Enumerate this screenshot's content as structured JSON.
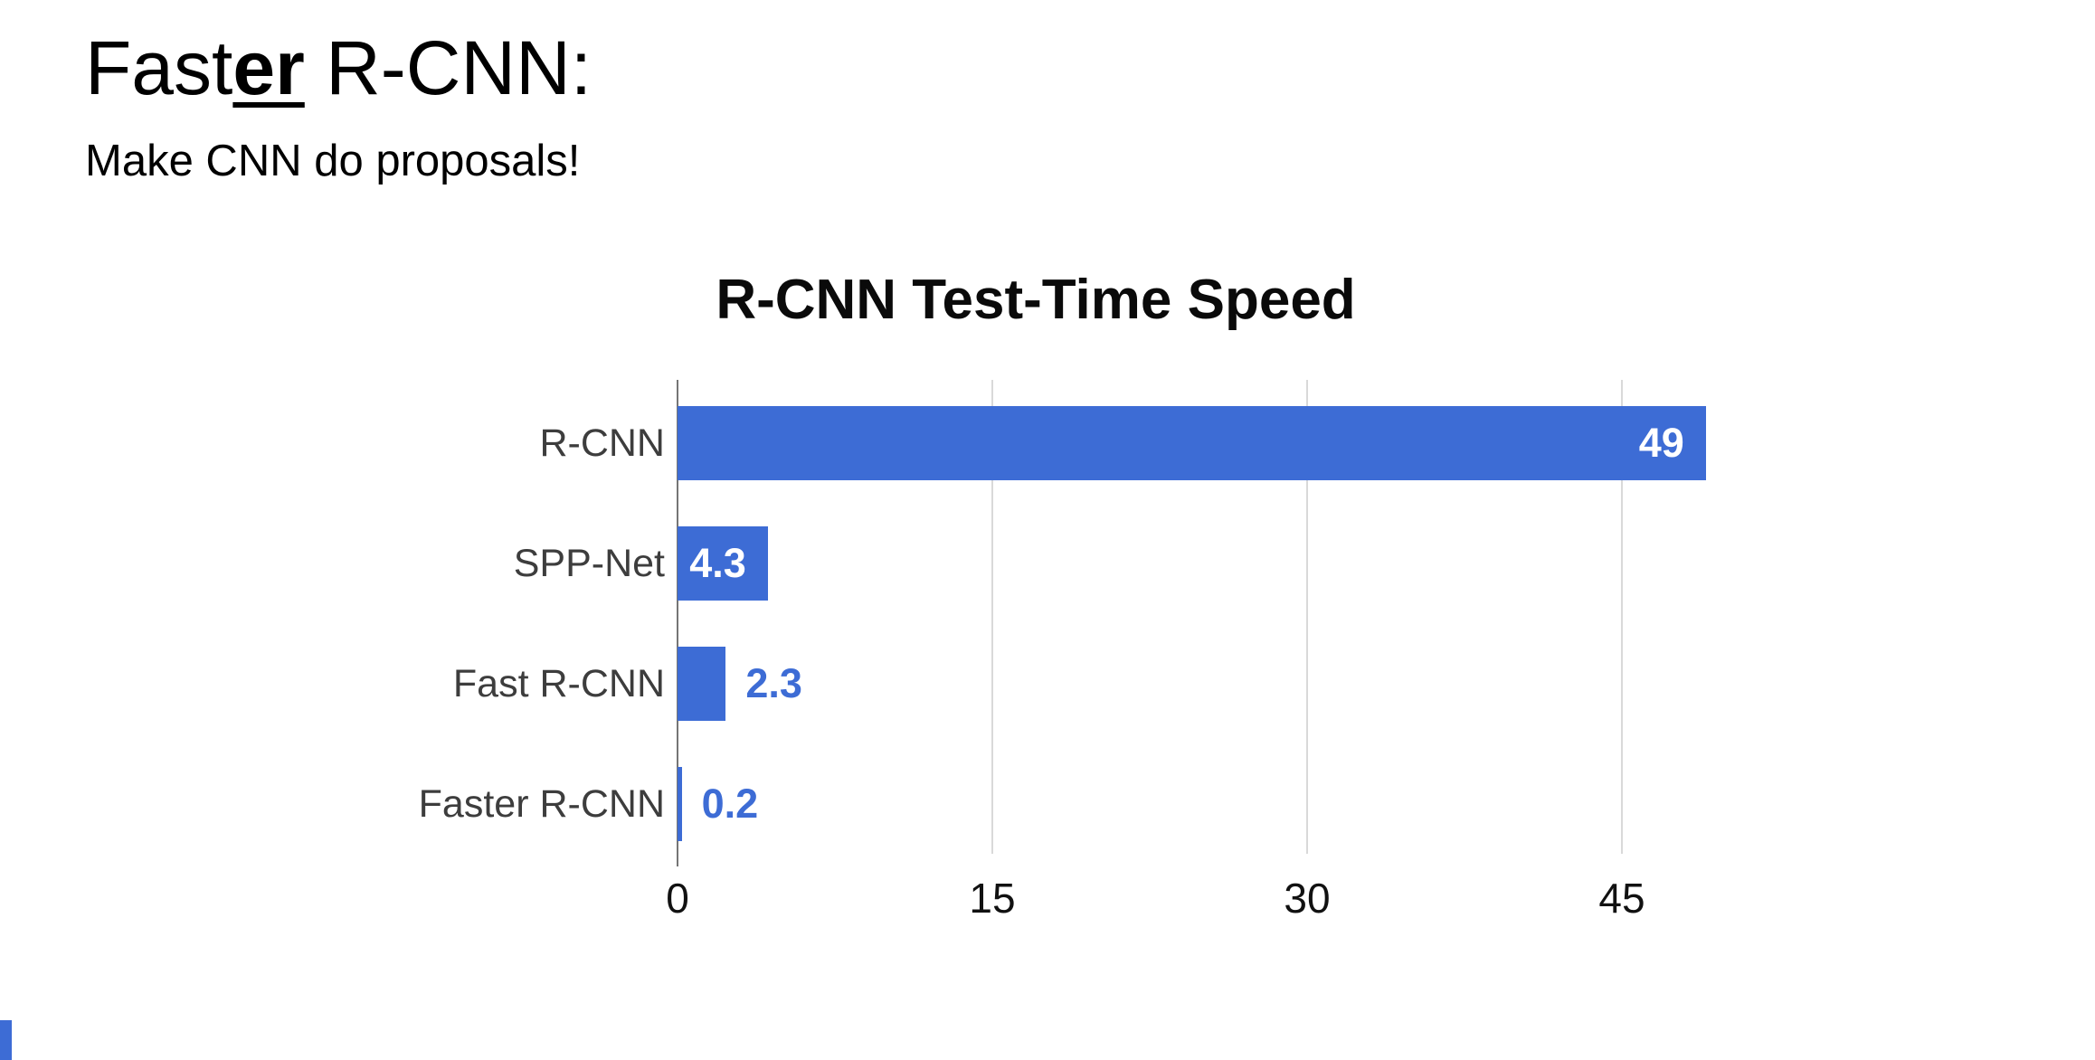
{
  "slide": {
    "title_part1": "Fast",
    "title_part2": "er",
    "title_part3": " R-CNN:",
    "subtitle": "Make CNN do proposals!",
    "corner_mark_color": "#3D6CD5"
  },
  "chart_data": {
    "type": "bar",
    "orientation": "horizontal",
    "title": "R-CNN Test-Time Speed",
    "categories": [
      "R-CNN",
      "SPP-Net",
      "Fast R-CNN",
      "Faster R-CNN"
    ],
    "values": [
      49,
      4.3,
      2.3,
      0.2
    ],
    "value_labels": [
      "49",
      "4.3",
      "2.3",
      "0.2"
    ],
    "xticks": [
      0,
      15,
      30,
      45
    ],
    "xlim": [
      0,
      52
    ],
    "grid": true,
    "legend": "none",
    "bar_color": "#3D6CD5",
    "value_label_inside_color": "#FFFFFF",
    "value_label_outside_color": "#3D6CD5",
    "gridline_color": "#D9D9D9",
    "axis_line_color": "#757575",
    "category_label_color": "#3D3D3D",
    "tick_label_color": "#111111"
  }
}
